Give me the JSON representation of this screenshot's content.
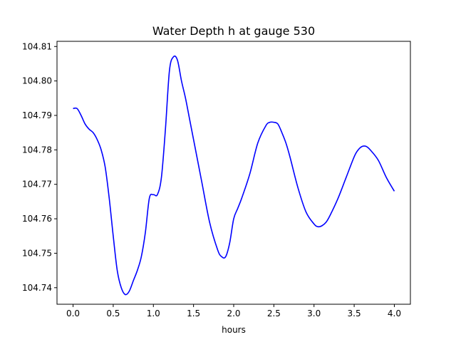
{
  "chart_data": {
    "type": "line",
    "title": "Water Depth h at gauge 530",
    "xlabel": "hours",
    "ylabel": "",
    "xlim": [
      -0.2,
      4.2
    ],
    "ylim": [
      104.7352,
      104.8115
    ],
    "xticks": [
      0.0,
      0.5,
      1.0,
      1.5,
      2.0,
      2.5,
      3.0,
      3.5,
      4.0
    ],
    "xtick_labels": [
      "0.0",
      "0.5",
      "1.0",
      "1.5",
      "2.0",
      "2.5",
      "3.0",
      "3.5",
      "4.0"
    ],
    "yticks": [
      104.74,
      104.75,
      104.76,
      104.77,
      104.78,
      104.79,
      104.8,
      104.81
    ],
    "ytick_labels": [
      "104.74",
      "104.75",
      "104.76",
      "104.77",
      "104.78",
      "104.79",
      "104.80",
      "104.81"
    ],
    "grid": false,
    "series": [
      {
        "color": "#0000ff",
        "x": [
          0.0,
          0.05,
          0.1,
          0.15,
          0.2,
          0.25,
          0.3,
          0.35,
          0.4,
          0.45,
          0.5,
          0.55,
          0.6,
          0.65,
          0.7,
          0.75,
          0.8,
          0.85,
          0.9,
          0.95,
          1.0,
          1.05,
          1.1,
          1.15,
          1.2,
          1.25,
          1.3,
          1.35,
          1.4,
          1.45,
          1.5,
          1.6,
          1.7,
          1.8,
          1.85,
          1.9,
          1.95,
          2.0,
          2.05,
          2.1,
          2.2,
          2.3,
          2.4,
          2.45,
          2.5,
          2.55,
          2.6,
          2.65,
          2.7,
          2.8,
          2.9,
          3.0,
          3.05,
          3.1,
          3.15,
          3.2,
          3.3,
          3.4,
          3.5,
          3.55,
          3.6,
          3.65,
          3.7,
          3.8,
          3.9,
          4.0
        ],
        "y": [
          104.792,
          104.792,
          104.79,
          104.7875,
          104.786,
          104.785,
          104.783,
          104.78,
          104.775,
          104.766,
          104.755,
          104.745,
          104.74,
          104.738,
          104.739,
          104.742,
          104.745,
          104.749,
          104.756,
          104.766,
          104.767,
          104.767,
          104.772,
          104.786,
          104.803,
          104.807,
          104.806,
          104.8,
          104.795,
          104.789,
          104.783,
          104.771,
          104.759,
          104.751,
          104.749,
          104.749,
          104.753,
          104.76,
          104.763,
          104.766,
          104.773,
          104.782,
          104.787,
          104.788,
          104.788,
          104.7875,
          104.785,
          104.782,
          104.778,
          104.769,
          104.762,
          104.7585,
          104.7577,
          104.758,
          104.759,
          104.761,
          104.766,
          104.772,
          104.778,
          104.78,
          104.781,
          104.781,
          104.78,
          104.777,
          104.772,
          104.768
        ]
      }
    ]
  }
}
